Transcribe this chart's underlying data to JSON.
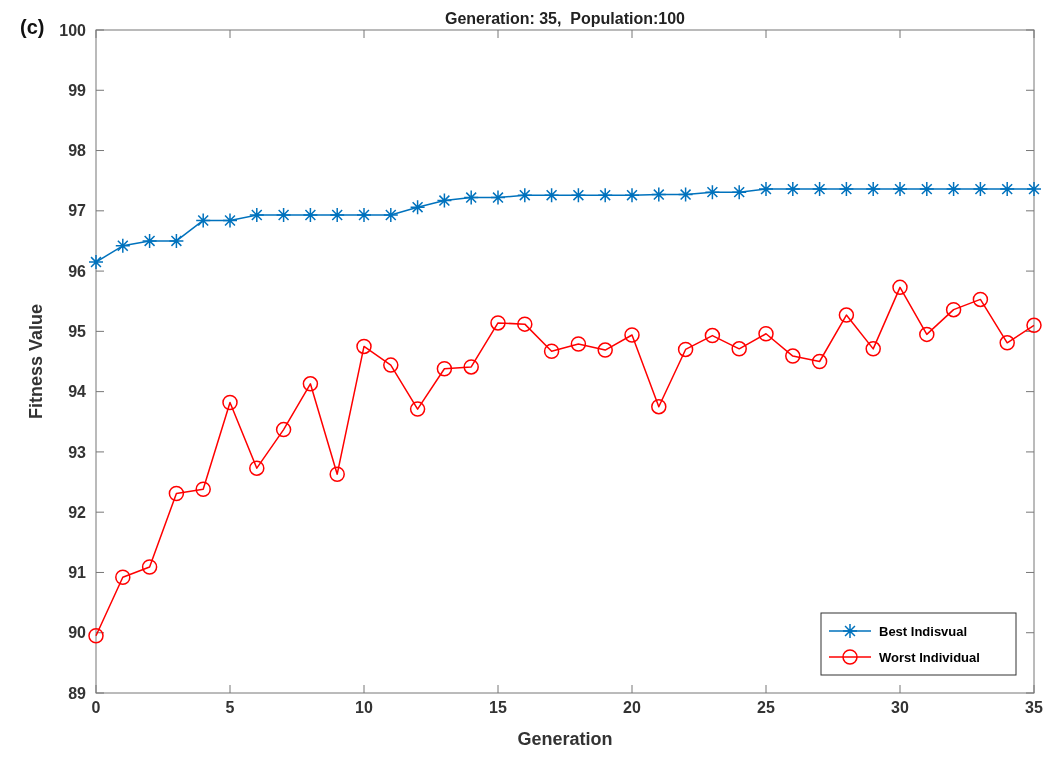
{
  "chart_data": {
    "type": "line",
    "title": "Generation: 35,  Population:100",
    "xlabel": "Generation",
    "ylabel": "Fitness Value",
    "annotations": [
      "(c)"
    ],
    "x": [
      0,
      1,
      2,
      3,
      4,
      5,
      6,
      7,
      8,
      9,
      10,
      11,
      12,
      13,
      14,
      15,
      16,
      17,
      18,
      19,
      20,
      21,
      22,
      23,
      24,
      25,
      26,
      27,
      28,
      29,
      30,
      31,
      32,
      33,
      34,
      35
    ],
    "series": [
      {
        "name": "Best Indisvual",
        "color": "#0072bd",
        "marker": "cross",
        "values": [
          96.15,
          96.42,
          96.5,
          96.5,
          96.84,
          96.84,
          96.93,
          96.93,
          96.93,
          96.93,
          96.93,
          96.93,
          97.06,
          97.17,
          97.22,
          97.22,
          97.26,
          97.26,
          97.26,
          97.26,
          97.26,
          97.27,
          97.27,
          97.31,
          97.31,
          97.36,
          97.36,
          97.36,
          97.36,
          97.36,
          97.36,
          97.36,
          97.36,
          97.36,
          97.36,
          97.36
        ]
      },
      {
        "name": "Worst Individual",
        "color": "#ff0000",
        "marker": "circle",
        "values": [
          89.95,
          90.92,
          91.09,
          92.31,
          92.38,
          93.82,
          92.73,
          93.37,
          94.13,
          92.63,
          94.75,
          94.44,
          93.71,
          94.38,
          94.41,
          95.14,
          95.12,
          94.67,
          94.79,
          94.69,
          94.94,
          93.75,
          94.7,
          94.93,
          94.71,
          94.96,
          94.59,
          94.5,
          95.27,
          94.71,
          95.73,
          94.95,
          95.36,
          95.53,
          94.81,
          95.1
        ]
      }
    ],
    "xlim": [
      0,
      35
    ],
    "xticks": [
      0,
      5,
      10,
      15,
      20,
      25,
      30,
      35
    ],
    "ylim": [
      89,
      100
    ],
    "yticks": [
      89,
      90,
      91,
      92,
      93,
      94,
      95,
      96,
      97,
      98,
      99,
      100
    ],
    "legend": "bottom right",
    "grid": false,
    "line_style": "solid"
  }
}
